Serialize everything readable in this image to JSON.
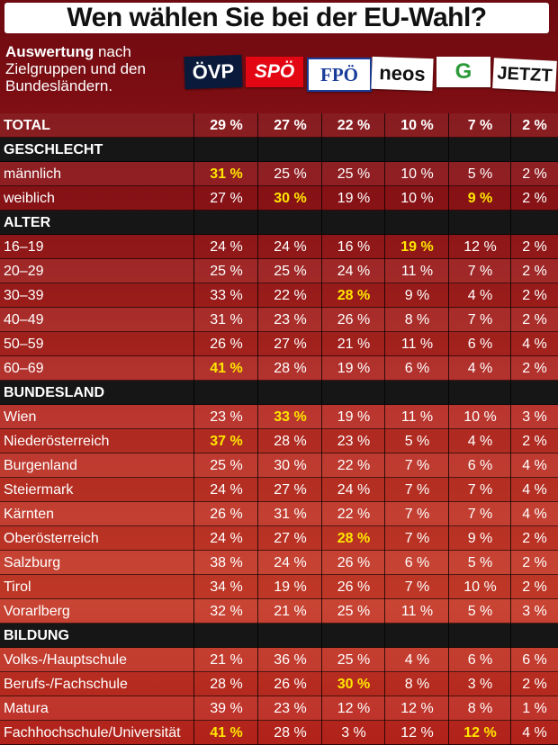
{
  "title": "Wen wählen Sie bei der EU-Wahl?",
  "subtitle": {
    "bold": "Auswertung",
    "rest": " nach Zielgruppen und den Bundesländern."
  },
  "parties": [
    {
      "label": "ÖVP",
      "icon": "oevp-logo",
      "bg": "#0a1a3a",
      "fg": "#ffffff"
    },
    {
      "label": "SPÖ",
      "icon": "spoe-logo",
      "bg": "#e30613",
      "fg": "#ffffff"
    },
    {
      "label": "FPÖ",
      "icon": "fpoe-logo",
      "bg": "#ffffff",
      "fg": "#1a3d9a"
    },
    {
      "label": "neos",
      "icon": "neos-logo",
      "bg": "#ffffff",
      "fg": "#111111"
    },
    {
      "label": "G",
      "icon": "gruene-logo",
      "bg": "#ffffff",
      "fg": "#2d9a3a"
    },
    {
      "label": "JETZT",
      "icon": "jetzt-logo",
      "bg": "#ffffff",
      "fg": "#111111"
    }
  ],
  "colors": {
    "highlight": "#ffe600",
    "section": "#161616"
  },
  "chart_data": {
    "type": "table",
    "columns": [
      "ÖVP",
      "SPÖ",
      "FPÖ",
      "NEOS",
      "Grüne",
      "JETZT"
    ],
    "rows": [
      {
        "kind": "total",
        "label": "TOTAL",
        "values": [
          "29 %",
          "27 %",
          "22 %",
          "10 %",
          "7 %",
          "2 %"
        ],
        "highlight": []
      },
      {
        "kind": "section",
        "label": "GESCHLECHT"
      },
      {
        "kind": "data",
        "label": "männlich",
        "values": [
          "31 %",
          "25 %",
          "25 %",
          "10 %",
          "5 %",
          "2 %"
        ],
        "highlight": [
          0
        ]
      },
      {
        "kind": "data",
        "label": "weiblich",
        "values": [
          "27 %",
          "30 %",
          "19 %",
          "10 %",
          "9 %",
          "2 %"
        ],
        "highlight": [
          1,
          4
        ]
      },
      {
        "kind": "section",
        "label": "ALTER"
      },
      {
        "kind": "data",
        "label": "16–19",
        "values": [
          "24 %",
          "24 %",
          "16 %",
          "19 %",
          "12 %",
          "2 %"
        ],
        "highlight": [
          3
        ]
      },
      {
        "kind": "data",
        "label": "20–29",
        "values": [
          "25 %",
          "25 %",
          "24 %",
          "11 %",
          "7 %",
          "2 %"
        ],
        "highlight": []
      },
      {
        "kind": "data",
        "label": "30–39",
        "values": [
          "33 %",
          "22 %",
          "28 %",
          "9 %",
          "4 %",
          "2 %"
        ],
        "highlight": [
          2
        ]
      },
      {
        "kind": "data",
        "label": "40–49",
        "values": [
          "31 %",
          "23 %",
          "26 %",
          "8 %",
          "7 %",
          "2 %"
        ],
        "highlight": []
      },
      {
        "kind": "data",
        "label": "50–59",
        "values": [
          "26 %",
          "27 %",
          "21 %",
          "11 %",
          "6 %",
          "4 %"
        ],
        "highlight": []
      },
      {
        "kind": "data",
        "label": "60–69",
        "values": [
          "41 %",
          "28 %",
          "19 %",
          "6 %",
          "4 %",
          "2 %"
        ],
        "highlight": [
          0
        ]
      },
      {
        "kind": "section",
        "label": "BUNDESLAND"
      },
      {
        "kind": "data",
        "label": "Wien",
        "values": [
          "23 %",
          "33 %",
          "19 %",
          "11 %",
          "10 %",
          "3 %"
        ],
        "highlight": [
          1
        ]
      },
      {
        "kind": "data",
        "label": "Niederösterreich",
        "values": [
          "37 %",
          "28 %",
          "23 %",
          "5 %",
          "4 %",
          "2 %"
        ],
        "highlight": [
          0
        ]
      },
      {
        "kind": "data",
        "label": "Burgenland",
        "values": [
          "25 %",
          "30 %",
          "22 %",
          "7 %",
          "6 %",
          "4 %"
        ],
        "highlight": []
      },
      {
        "kind": "data",
        "label": "Steiermark",
        "values": [
          "24 %",
          "27 %",
          "24 %",
          "7 %",
          "7 %",
          "4 %"
        ],
        "highlight": []
      },
      {
        "kind": "data",
        "label": "Kärnten",
        "values": [
          "26 %",
          "31 %",
          "22 %",
          "7 %",
          "7 %",
          "4 %"
        ],
        "highlight": []
      },
      {
        "kind": "data",
        "label": "Oberösterreich",
        "values": [
          "24 %",
          "27 %",
          "28 %",
          "7 %",
          "9 %",
          "2 %"
        ],
        "highlight": [
          2
        ]
      },
      {
        "kind": "data",
        "label": "Salzburg",
        "values": [
          "38 %",
          "24 %",
          "26 %",
          "6 %",
          "5 %",
          "2 %"
        ],
        "highlight": []
      },
      {
        "kind": "data",
        "label": "Tirol",
        "values": [
          "34 %",
          "19 %",
          "26 %",
          "7 %",
          "10 %",
          "2 %"
        ],
        "highlight": []
      },
      {
        "kind": "data",
        "label": "Vorarlberg",
        "values": [
          "32 %",
          "21 %",
          "25 %",
          "11 %",
          "5 %",
          "3 %"
        ],
        "highlight": []
      },
      {
        "kind": "section",
        "label": "BILDUNG"
      },
      {
        "kind": "data",
        "label": "Volks-/Hauptschule",
        "values": [
          "21 %",
          "36 %",
          "25 %",
          "4 %",
          "6 %",
          "6 %"
        ],
        "highlight": []
      },
      {
        "kind": "data",
        "label": "Berufs-/Fachschule",
        "values": [
          "28 %",
          "26 %",
          "30 %",
          "8 %",
          "3 %",
          "2 %"
        ],
        "highlight": [
          2
        ]
      },
      {
        "kind": "data",
        "label": "Matura",
        "values": [
          "39 %",
          "23 %",
          "12 %",
          "12 %",
          "8 %",
          "1 %"
        ],
        "highlight": []
      },
      {
        "kind": "data",
        "label": "Fachhochschule/Universität",
        "values": [
          "41 %",
          "28 %",
          "3 %",
          "12 %",
          "12 %",
          "4 %"
        ],
        "highlight": [
          0,
          4
        ]
      }
    ]
  }
}
